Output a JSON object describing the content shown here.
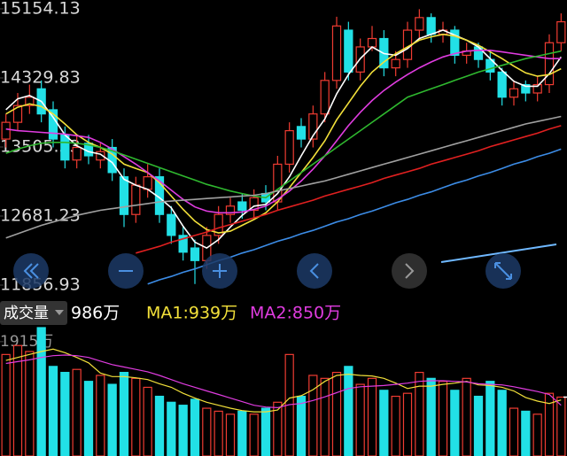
{
  "chart_data": [
    {
      "type": "candlestick",
      "up_color": "#f03c32",
      "down_color": "#22e0e6",
      "ylim": [
        11856.93,
        15154.13
      ],
      "yticks": [
        15154.13,
        14329.83,
        13505.53,
        12681.23,
        11856.93
      ],
      "open": [
        13600,
        13800,
        14000,
        14200,
        13950,
        13650,
        13350,
        13550,
        13350,
        13500,
        13150,
        12700,
        13000,
        13150,
        12700,
        12450,
        12300,
        12150,
        12450,
        12700,
        12850,
        12750,
        12950,
        12850,
        13300,
        13750,
        13600,
        13900,
        14300,
        14900,
        14400,
        14700,
        14800,
        14450,
        14550,
        14900,
        15050,
        14850,
        14900,
        14600,
        14700,
        14550,
        14400,
        14100,
        14250,
        14150,
        14250,
        14750
      ],
      "high": [
        13900,
        14150,
        14250,
        14300,
        14050,
        13750,
        13650,
        13650,
        13550,
        13600,
        13250,
        13150,
        13300,
        13250,
        12800,
        12550,
        12400,
        12550,
        12800,
        12900,
        12950,
        13000,
        13050,
        13400,
        13800,
        13850,
        14000,
        14400,
        15060,
        15000,
        14800,
        14950,
        14900,
        14650,
        15000,
        15150,
        15100,
        15000,
        14950,
        14750,
        14750,
        14650,
        14450,
        14300,
        14300,
        14350,
        14850,
        15100
      ],
      "low": [
        13500,
        13700,
        13900,
        13800,
        13500,
        13250,
        13250,
        13300,
        13250,
        13100,
        12550,
        12600,
        12900,
        12600,
        12350,
        12150,
        11870,
        12050,
        12350,
        12600,
        12650,
        12650,
        12750,
        12750,
        13200,
        13500,
        13500,
        13800,
        14200,
        14300,
        14300,
        14650,
        14350,
        14350,
        14450,
        14800,
        14750,
        14750,
        14500,
        14500,
        14450,
        14300,
        14000,
        14000,
        14050,
        14050,
        14150,
        14650
      ],
      "close": [
        13800,
        14000,
        14100,
        13900,
        13600,
        13350,
        13500,
        13400,
        13450,
        13200,
        12700,
        13050,
        13150,
        12700,
        12450,
        12250,
        12150,
        12450,
        12700,
        12800,
        12750,
        12900,
        12850,
        13300,
        13700,
        13600,
        13900,
        14300,
        14950,
        14400,
        14700,
        14800,
        14450,
        14550,
        14900,
        15050,
        14850,
        14900,
        14600,
        14650,
        14550,
        14400,
        14100,
        14200,
        14150,
        14250,
        14750,
        15000
      ],
      "series": [
        {
          "color": "#ffffff",
          "values": [
            13950,
            14080,
            14120,
            14050,
            13860,
            13650,
            13520,
            13450,
            13420,
            13320,
            13120,
            13050,
            13000,
            12900,
            12780,
            12560,
            12370,
            12300,
            12400,
            12550,
            12690,
            12800,
            12820,
            12950,
            13150,
            13400,
            13640,
            13840,
            14140,
            14370,
            14560,
            14700,
            14620,
            14600,
            14680,
            14800,
            14850,
            14900,
            14840,
            14780,
            14700,
            14560,
            14420,
            14290,
            14230,
            14230,
            14380,
            14580
          ]
        },
        {
          "color": "#f2e03a",
          "values": [
            13900,
            13980,
            14020,
            13990,
            13900,
            13780,
            13650,
            13560,
            13500,
            13420,
            13300,
            13250,
            13200,
            13080,
            12920,
            12760,
            12620,
            12520,
            12480,
            12500,
            12570,
            12640,
            12720,
            12850,
            13020,
            13200,
            13380,
            13580,
            13830,
            14030,
            14230,
            14400,
            14520,
            14620,
            14700,
            14780,
            14820,
            14850,
            14830,
            14780,
            14720,
            14640,
            14560,
            14470,
            14390,
            14350,
            14370,
            14440
          ]
        },
        {
          "color": "#e03ce0",
          "values": [
            13720,
            13700,
            13690,
            13680,
            13670,
            13660,
            13640,
            13620,
            13560,
            13480,
            13390,
            13300,
            13200,
            13100,
            12990,
            12880,
            12790,
            12740,
            12720,
            12720,
            12730,
            12760,
            12800,
            12880,
            12980,
            13100,
            13240,
            13400,
            13580,
            13760,
            13920,
            14060,
            14180,
            14280,
            14370,
            14450,
            14520,
            14580,
            14620,
            14650,
            14660,
            14660,
            14640,
            14620,
            14600,
            14580,
            14560,
            14560
          ]
        },
        {
          "color": "#2fb82f",
          "values": [
            13430,
            13480,
            13520,
            13550,
            13560,
            13560,
            13550,
            13530,
            13500,
            13460,
            13410,
            13360,
            13310,
            13260,
            13210,
            13160,
            13110,
            13060,
            13020,
            12980,
            12950,
            12920,
            12900,
            13000,
            13100,
            13200,
            13300,
            13400,
            13500,
            13600,
            13700,
            13800,
            13900,
            14000,
            14100,
            14150,
            14200,
            14250,
            14300,
            14350,
            14400,
            14440,
            14480,
            14520,
            14560,
            14590,
            14620,
            14650
          ]
        },
        {
          "color": "#a0a0a0",
          "values": [
            12420,
            12470,
            12520,
            12570,
            12610,
            12650,
            12690,
            12720,
            12750,
            12770,
            12790,
            12810,
            12830,
            12850,
            12860,
            12870,
            12880,
            12890,
            12900,
            12910,
            12920,
            12930,
            12950,
            12980,
            13010,
            13040,
            13070,
            13100,
            13140,
            13180,
            13220,
            13260,
            13300,
            13340,
            13380,
            13420,
            13460,
            13500,
            13540,
            13580,
            13620,
            13660,
            13700,
            13740,
            13780,
            13810,
            13840,
            13870
          ]
        },
        {
          "color": "#e02020",
          "values": [
            null,
            null,
            null,
            null,
            null,
            null,
            null,
            null,
            null,
            null,
            null,
            12240,
            12280,
            12320,
            12370,
            12410,
            12450,
            12490,
            12540,
            12580,
            12620,
            12660,
            12700,
            12750,
            12790,
            12830,
            12870,
            12920,
            12960,
            13000,
            13040,
            13080,
            13130,
            13170,
            13210,
            13250,
            13300,
            13340,
            13380,
            13420,
            13460,
            13510,
            13550,
            13590,
            13630,
            13670,
            13720,
            13760
          ]
        },
        {
          "color": "#3c8ce6",
          "values": [
            null,
            null,
            null,
            null,
            null,
            null,
            null,
            null,
            null,
            null,
            null,
            null,
            11870,
            11920,
            11960,
            12010,
            12050,
            12100,
            12150,
            12190,
            12240,
            12280,
            12330,
            12380,
            12420,
            12470,
            12510,
            12560,
            12610,
            12650,
            12700,
            12740,
            12790,
            12840,
            12880,
            12930,
            12970,
            13020,
            13070,
            13110,
            13160,
            13200,
            13250,
            13300,
            13340,
            13390,
            13430,
            13480
          ]
        }
      ]
    },
    {
      "type": "bar",
      "title": "成交量",
      "current": {
        "value": 986,
        "label": "986万"
      },
      "ylim": [
        0,
        2150
      ],
      "yticks": [
        {
          "value": 1915,
          "label": "1915万"
        }
      ],
      "values": [
        1700,
        1850,
        1750,
        2150,
        1500,
        1400,
        1450,
        1250,
        1350,
        1200,
        1400,
        1300,
        1150,
        1000,
        900,
        850,
        950,
        800,
        750,
        700,
        750,
        700,
        800,
        900,
        1700,
        1000,
        1350,
        1300,
        1400,
        1500,
        1200,
        1300,
        1100,
        1000,
        1050,
        1400,
        1300,
        1250,
        1100,
        1300,
        1000,
        1250,
        1100,
        800,
        750,
        700,
        1050,
        986
      ],
      "series": [
        {
          "name": "MA1:939万",
          "color": "#f2e03a",
          "values": [
            1600,
            1650,
            1700,
            1750,
            1790,
            1730,
            1650,
            1560,
            1390,
            1330,
            1330,
            1310,
            1280,
            1210,
            1150,
            1050,
            970,
            900,
            850,
            800,
            760,
            740,
            740,
            770,
            970,
            1010,
            1110,
            1250,
            1350,
            1370,
            1350,
            1340,
            1300,
            1220,
            1130,
            1170,
            1170,
            1200,
            1220,
            1250,
            1190,
            1180,
            1150,
            1090,
            980,
            920,
            880,
            939
          ]
        },
        {
          "name": "MA2:850万",
          "color": "#e03ce0",
          "values": [
            1550,
            1580,
            1610,
            1650,
            1680,
            1690,
            1680,
            1650,
            1590,
            1530,
            1490,
            1450,
            1410,
            1350,
            1280,
            1210,
            1150,
            1090,
            1030,
            970,
            910,
            850,
            820,
            810,
            860,
            880,
            930,
            990,
            1060,
            1130,
            1160,
            1170,
            1180,
            1200,
            1220,
            1250,
            1260,
            1260,
            1250,
            1240,
            1210,
            1200,
            1190,
            1160,
            1120,
            1080,
            1030,
            850
          ]
        }
      ]
    }
  ]
}
